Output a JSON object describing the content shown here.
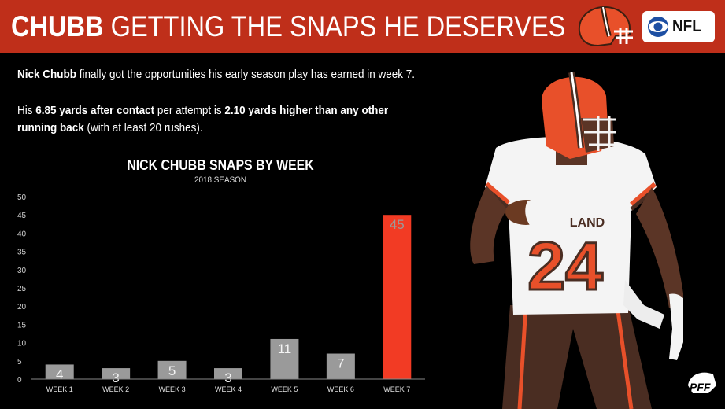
{
  "banner": {
    "title_bold": "CHUBB",
    "title_rest": "GETTING THE SNAPS HE DESERVES",
    "network_label": "NFL"
  },
  "intro": {
    "p1_bold": "Nick Chubb",
    "p1_rest": " finally got the opportunities his early season play has earned in week 7.",
    "p2_a": "His ",
    "p2_b": "6.85 yards after contact",
    "p2_c": " per attempt is ",
    "p2_d": "2.10 yards higher than any other",
    "p2_e": "running back",
    "p2_f": " (with at least 20 rushes)."
  },
  "player": {
    "jersey_number": "24",
    "jersey_text": "LAND"
  },
  "chart_data": {
    "type": "bar",
    "title": "NICK CHUBB SNAPS BY WEEK",
    "subtitle": "2018 SEASON",
    "categories": [
      "WEEK 1",
      "WEEK 2",
      "WEEK 3",
      "WEEK 4",
      "WEEK 5",
      "WEEK 6",
      "WEEK 7"
    ],
    "values": [
      4,
      3,
      5,
      3,
      11,
      7,
      45
    ],
    "data_labels": [
      "4",
      "3",
      "5",
      "3",
      "11",
      "7",
      "45"
    ],
    "ylim": [
      0,
      50
    ],
    "yticks": [
      "0",
      "5",
      "10",
      "15",
      "20",
      "25",
      "30",
      "35",
      "40",
      "45",
      "50"
    ],
    "grid": false,
    "colors": {
      "default": "#9a9a9a",
      "highlight": "#f23b24",
      "highlight_index": 6
    }
  }
}
